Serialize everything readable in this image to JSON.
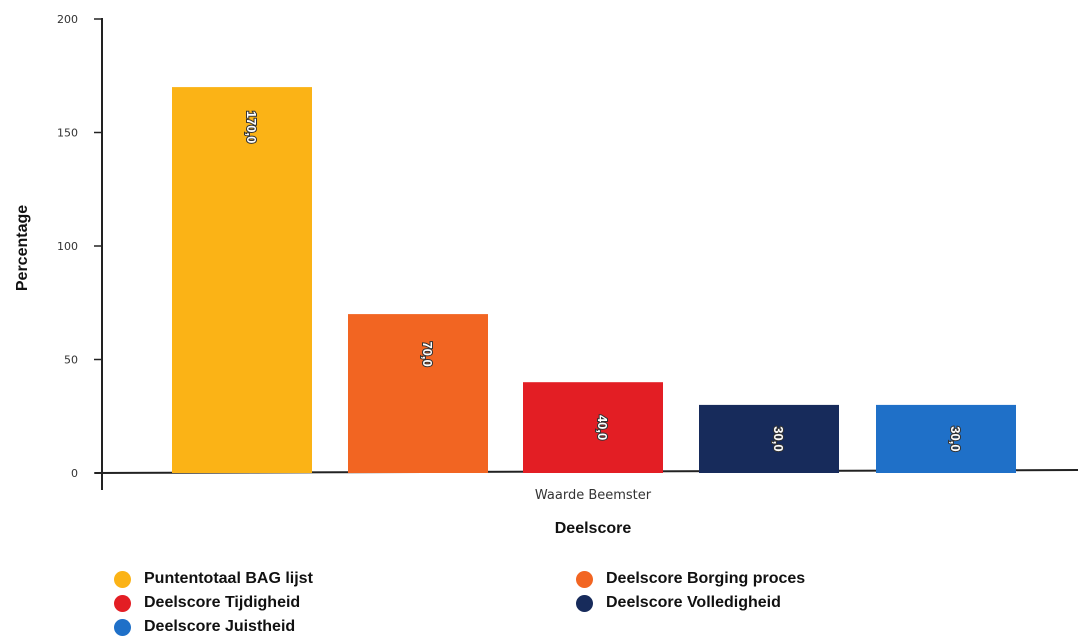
{
  "chart_data": {
    "type": "bar",
    "ylabel": "Percentage",
    "xlabel": "Deelscore",
    "category": "Waarde Beemster",
    "ylim": [
      0,
      200
    ],
    "yticks": [
      "0",
      "50",
      "100",
      "150",
      "200"
    ],
    "series": [
      {
        "name": "Puntentotaal BAG lijst",
        "value": 170,
        "label": "170,0",
        "color": "#fbb316"
      },
      {
        "name": "Deelscore Borging proces",
        "value": 70,
        "label": "70,0",
        "color": "#f26522"
      },
      {
        "name": "Deelscore Tijdigheid",
        "value": 40,
        "label": "40,0",
        "color": "#e31e24"
      },
      {
        "name": "Deelscore Volledigheid",
        "value": 30,
        "label": "30,0",
        "color": "#172b5b"
      },
      {
        "name": "Deelscore Juistheid",
        "value": 30,
        "label": "30,0",
        "color": "#1f70c8"
      }
    ],
    "legend_position": "bottom",
    "grid": false
  }
}
